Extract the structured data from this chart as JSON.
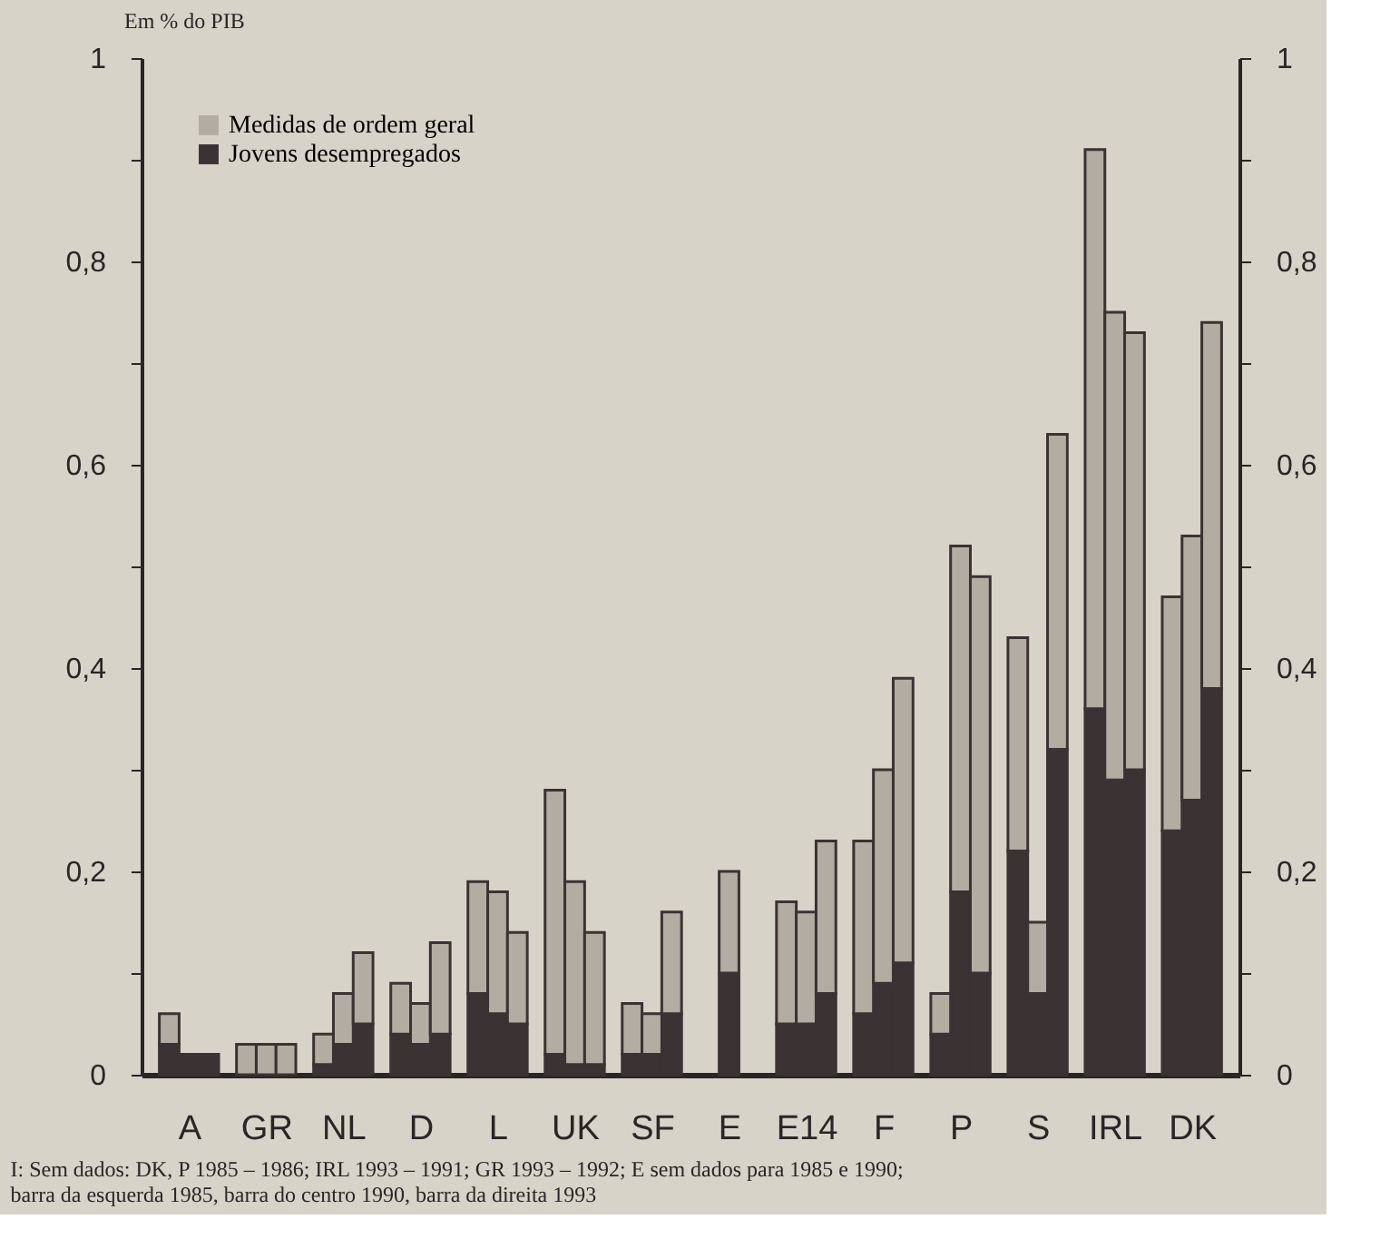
{
  "chart_data": {
    "type": "bar",
    "stacked": true,
    "ylabel": "Em % do PIB",
    "categories": [
      null,
      "A",
      null,
      null,
      "GR",
      null,
      null,
      "NL",
      null,
      null,
      "D",
      null,
      null,
      "L",
      null,
      null,
      "UK",
      null,
      null,
      "SF",
      null,
      null,
      "E",
      null,
      null,
      "E14",
      null,
      null,
      "F",
      null,
      null,
      "P",
      null,
      null,
      "S",
      null,
      null,
      "IRL",
      null,
      null,
      "DK",
      null
    ],
    "series": [
      {
        "name": "Jovens desempregados",
        "color": "#3b3234",
        "values": [
          0.03,
          0.02,
          0.02,
          0,
          0,
          0,
          0.01,
          0.03,
          0.05,
          0.04,
          0.03,
          0.04,
          0.08,
          0.06,
          0.05,
          0.02,
          0.01,
          0.01,
          0.02,
          0.02,
          0.06,
          null,
          0.1,
          null,
          0.05,
          0.05,
          0.08,
          0.06,
          0.09,
          0.11,
          0.04,
          0.18,
          0.1,
          0.22,
          0.08,
          0.32,
          0.36,
          0.29,
          0.3,
          0.24,
          0.27,
          0.38
        ]
      },
      {
        "name": "Medidas de ordem geral",
        "color": "#b3aca3",
        "values": [
          0.03,
          0,
          0,
          0.03,
          0.03,
          0.03,
          0.03,
          0.05,
          0.07,
          0.05,
          0.04,
          0.09,
          0.11,
          0.12,
          0.09,
          0.26,
          0.18,
          0.13,
          0.05,
          0.04,
          0.1,
          null,
          0.1,
          null,
          0.12,
          0.11,
          0.15,
          0.17,
          0.21,
          0.28,
          0.04,
          0.34,
          0.39,
          0.21,
          0.07,
          0.31,
          0.55,
          0.46,
          0.43,
          0.23,
          0.26,
          0.36
        ]
      }
    ],
    "ylim": [
      0,
      1
    ],
    "yticks": [
      0,
      {
        "value": 0.1,
        "label": null
      },
      {
        "value": 0.2,
        "label": "0,2"
      },
      {
        "value": 0.3,
        "label": null
      },
      {
        "value": 0.4,
        "label": "0,4"
      },
      {
        "value": 0.5,
        "label": null
      },
      {
        "value": 0.6,
        "label": "0,6"
      },
      {
        "value": 0.7,
        "label": null
      },
      {
        "value": 0.8,
        "label": "0,8"
      },
      {
        "value": 0.9,
        "label": null
      },
      1
    ],
    "y2lim": [
      0,
      1
    ],
    "y2ticks": [
      0,
      {
        "value": 0.1,
        "label": null
      },
      {
        "value": 0.2,
        "label": "0,2"
      },
      {
        "value": 0.3,
        "label": null
      },
      {
        "value": 0.4,
        "label": "0,4"
      },
      {
        "value": 0.5,
        "label": null
      },
      {
        "value": 0.6,
        "label": "0,6"
      },
      {
        "value": 0.7,
        "label": null
      },
      {
        "value": 0.8,
        "label": "0,8"
      },
      {
        "value": 0.9,
        "label": null
      },
      1
    ],
    "grid": false,
    "legend": "top left",
    "annotations": [
      "I: Sem dados: DK, P 1985 – 1986; IRL 1993 – 1991; GR 1993 – 1992; E sem dados para 1985 e 1990;",
      "barra da esquerda 1985, barra do centro 1990, barra da direita 1993"
    ]
  }
}
